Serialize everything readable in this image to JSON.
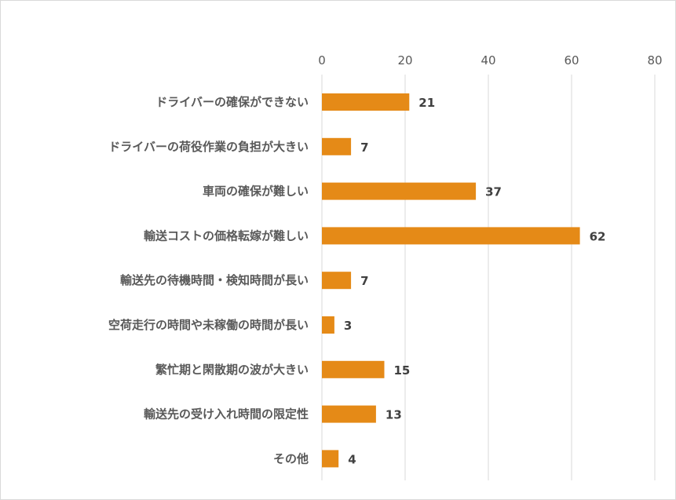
{
  "chart_data": {
    "type": "bar",
    "orientation": "horizontal",
    "title": "",
    "xlabel": "",
    "ylabel": "",
    "xlim": [
      0,
      80
    ],
    "x_ticks": [
      0,
      20,
      40,
      60,
      80
    ],
    "x_axis_position": "top",
    "grid": "vertical",
    "legend": "none",
    "bar_color": "#E58A17",
    "categories": [
      "ドライバーの確保ができない",
      "ドライバーの荷役作業の負担が大きい",
      "車両の確保が難しい",
      "輸送コストの価格転嫁が難しい",
      "輸送先の待機時間・検知時間が長い",
      "空荷走行の時間や未稼働の時間が長い",
      "繁忙期と閑散期の波が大きい",
      "輸送先の受け入れ時間の限定性",
      "その他"
    ],
    "values": [
      21,
      7,
      37,
      62,
      7,
      3,
      15,
      13,
      4
    ]
  }
}
